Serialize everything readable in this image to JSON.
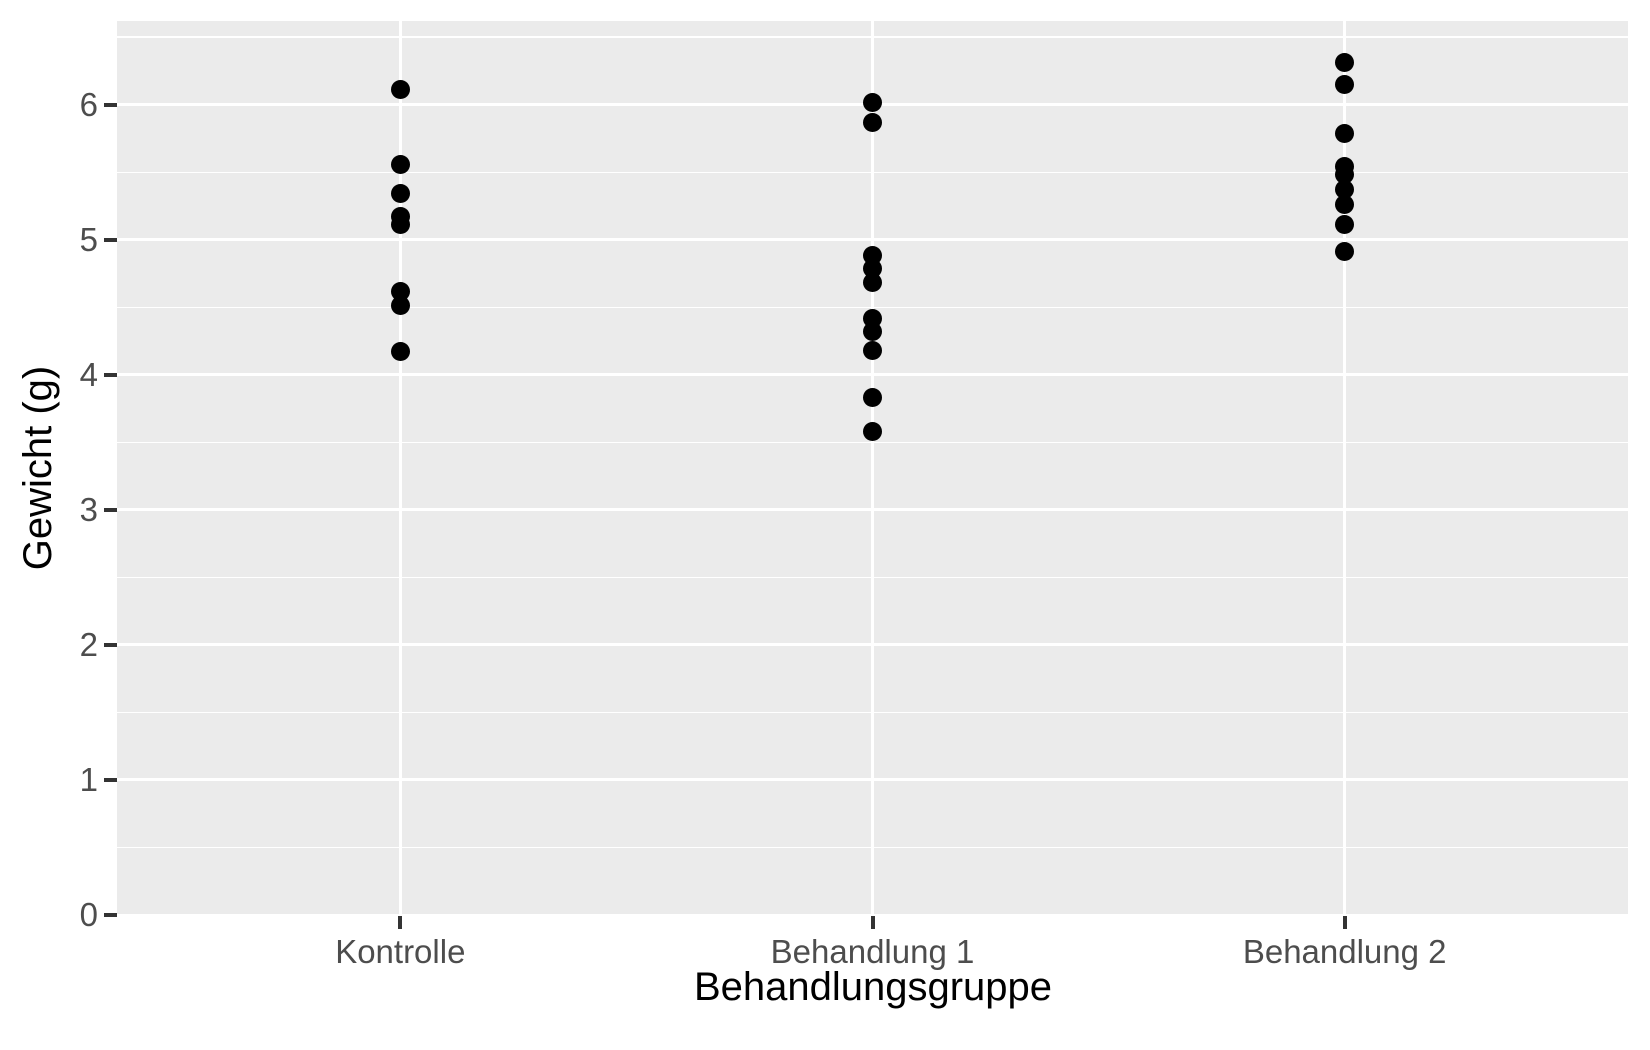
{
  "chart_data": {
    "type": "scatter",
    "variant": "strip-plot",
    "title": "",
    "xlabel": "Behandlungsgruppe",
    "ylabel": "Gewicht (g)",
    "categories": [
      "Kontrolle",
      "Behandlung 1",
      "Behandlung 2"
    ],
    "series": [
      {
        "name": "Kontrolle",
        "values": [
          6.11,
          5.56,
          5.34,
          5.17,
          5.11,
          4.62,
          4.51,
          4.17
        ]
      },
      {
        "name": "Behandlung 1",
        "values": [
          6.02,
          5.87,
          4.88,
          4.79,
          4.68,
          4.42,
          4.32,
          4.18,
          3.83,
          3.58
        ]
      },
      {
        "name": "Behandlung 2",
        "values": [
          6.31,
          6.15,
          5.79,
          5.54,
          5.48,
          5.37,
          5.26,
          5.11,
          4.91
        ]
      }
    ],
    "ylim": [
      0,
      6.62
    ],
    "yticks": [
      0,
      1,
      2,
      3,
      4,
      5,
      6
    ],
    "ytick_labels": [
      "0",
      "1",
      "2",
      "3",
      "4",
      "5",
      "6"
    ],
    "minor_yticks": [
      0.5,
      1.5,
      2.5,
      3.5,
      4.5,
      5.5,
      6.5
    ],
    "grid": "white horizontal major+minor lines and one white vertical line per category on gray panel",
    "legend": "none",
    "colors": {
      "panel_bg": "#EBEBEB",
      "grid": "#FFFFFF",
      "point": "#000000",
      "tick_label": "#4D4D4D",
      "tick_mark": "#333333",
      "axis_title": "#000000",
      "page_bg": "#FFFFFF"
    }
  }
}
